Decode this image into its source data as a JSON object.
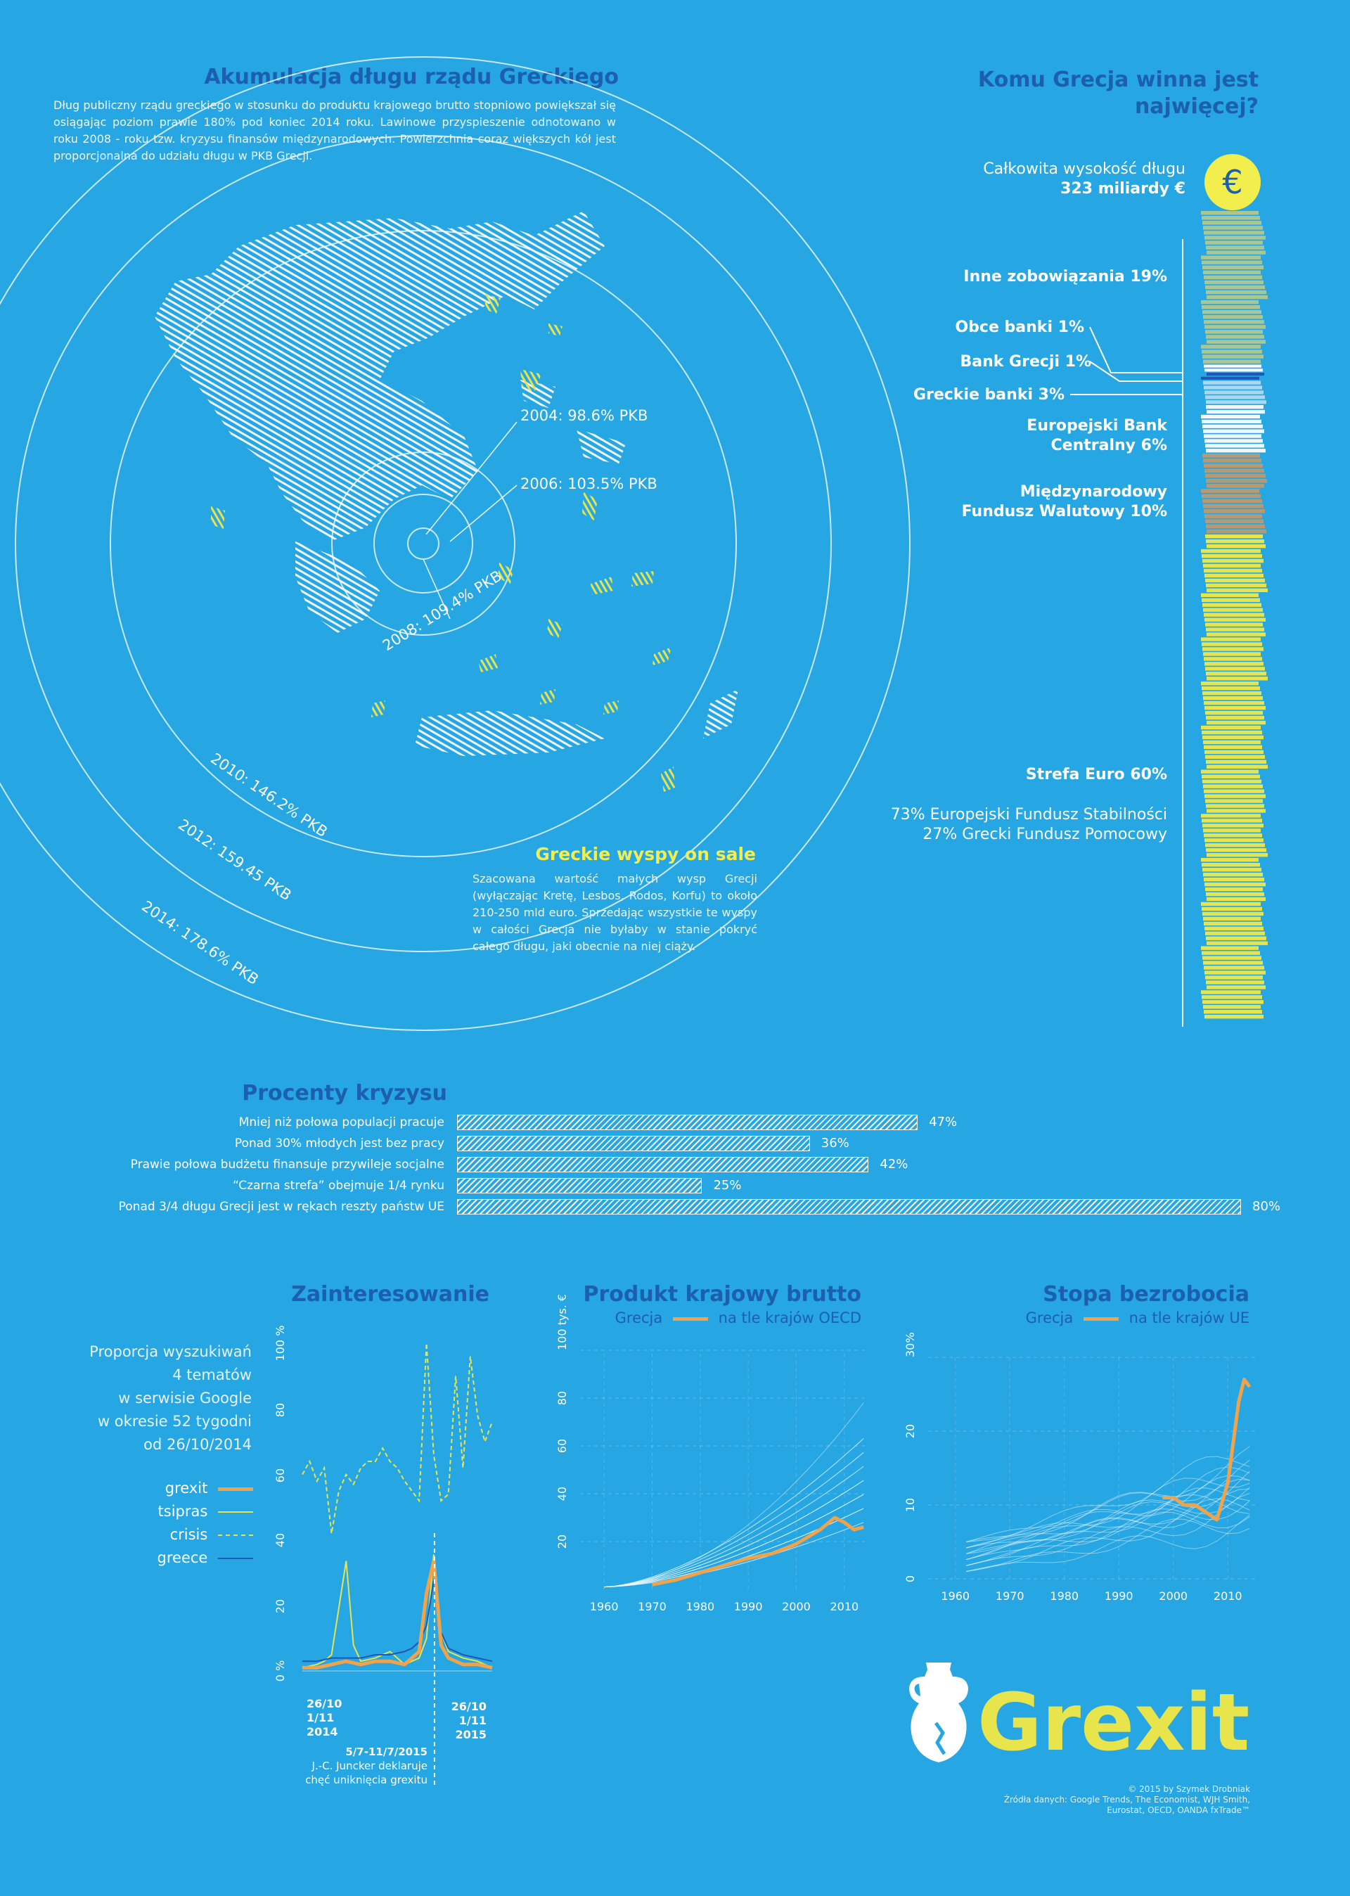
{
  "colors": {
    "background": "#26a6e2",
    "title": "#1c5fae",
    "yellow": "#e8e54c",
    "orange": "#f0a34a",
    "white": "#ffffff",
    "navy": "#1f57b6"
  },
  "accumulation": {
    "title": "Akumulacja długu rządu Greckiego",
    "text": "Dług publiczny rządu greckiego w stosunku do produktu krajowego brutto stopniowo powiększał się osiągając poziom prawie 180% pod koniec 2014 roku. Lawinowe przyspieszenie odnotowano w roku 2008 - roku tzw. kryzysu finansów międzynarodowych. Powierzchnia coraz większych kół jest proporcjonalna do udziału długu w PKB Grecji.",
    "rings": [
      {
        "label": "2004: 98.6% PKB",
        "value": 98.6
      },
      {
        "label": "2006: 103.5% PKB",
        "value": 103.5
      },
      {
        "label": "2008: 109.4% PKB",
        "value": 109.4
      },
      {
        "label": "2010: 146.2% PKB",
        "value": 146.2
      },
      {
        "label": "2012: 159.45 PKB",
        "value": 159.45
      },
      {
        "label": "2014: 178.6% PKB",
        "value": 178.6
      }
    ]
  },
  "islands": {
    "title": "Greckie wyspy on sale",
    "text": "Szacowana wartość małych wysp Grecji (wyłączając Kretę, Lesbos, Rodos, Korfu) to około 210-250 mld euro. Sprzedając wszystkie te wyspy w całości Grecja nie byłaby w stanie pokryć całego długu, jaki obecnie na niej ciąży."
  },
  "creditors": {
    "title_line1": "Komu Grecja winna jest",
    "title_line2": "najwięcej?",
    "total_label": "Całkowita wysokość długu",
    "total_value": "323 miliardy €",
    "currency_icon": "€",
    "segments": [
      {
        "label": "Inne zobowiązania 19%",
        "share": 19,
        "color": "#a9c694"
      },
      {
        "label": "Obce banki 1%",
        "share": 1,
        "color": "#ffffff"
      },
      {
        "label": "Bank Grecji 1%",
        "share": 1,
        "color": "#1f57b6"
      },
      {
        "label": "Greckie banki 3%",
        "share": 3,
        "color": "#a8d8f3"
      },
      {
        "label": "Europejski Bank Centralny 6%",
        "share": 6,
        "color": "#f1f7fb"
      },
      {
        "label": "Międzynarodowy Fundusz Walutowy 10%",
        "share": 10,
        "color": "#b69a74"
      },
      {
        "label": "Strefa Euro 60%",
        "share": 60,
        "color": "#e8e54c"
      }
    ],
    "inne_line": "Inne zobowiązania 19%",
    "obce_line": "Obce banki 1%",
    "bankgr_line": "Bank Grecji 1%",
    "greckie_line": "Greckie banki 3%",
    "ebc_line1": "Europejski Bank",
    "ebc_line2": "Centralny 6%",
    "mfw_line1": "Międzynarodowy",
    "mfw_line2": "Fundusz Walutowy 10%",
    "euro_line": "Strefa Euro 60%",
    "euro_note1": "73% Europejski Fundusz Stabilności",
    "euro_note2": "27% Grecki Fundusz Pomocowy"
  },
  "crisis": {
    "title": "Procenty kryzysu",
    "rows": [
      {
        "label": "Mniej niż połowa populacji pracuje",
        "value": 47,
        "text": "47%"
      },
      {
        "label": "Ponad 30% młodych jest bez pracy",
        "value": 36,
        "text": "36%"
      },
      {
        "label": "Prawie połowa budżetu finansuje przywileje socjalne",
        "value": 42,
        "text": "42%"
      },
      {
        "label": "“Czarna strefa” obejmuje 1/4 rynku",
        "value": 25,
        "text": "25%"
      },
      {
        "label": "Ponad 3/4 długu Grecji jest w rękach reszty państw UE",
        "value": 80,
        "text": "80%"
      }
    ]
  },
  "interest": {
    "title": "Zainteresowanie",
    "desc1": "Proporcja wyszukiwań",
    "desc2": "4 tematów",
    "desc3": "w serwisie Google",
    "desc4": "w okresie 52 tygodni",
    "desc5": "od 26/10/2014",
    "legend": [
      "grexit",
      "tsipras",
      "crisis",
      "greece"
    ],
    "yticks": [
      "0 %",
      "20",
      "40",
      "60",
      "80",
      "100 %"
    ],
    "x_start": [
      "26/10",
      "1/11",
      "2014"
    ],
    "x_end": [
      "26/10",
      "1/11",
      "2015"
    ],
    "note1": "5/7-11/7/2015",
    "note2": "J.-C. Juncker deklaruje",
    "note3": "chęć uniknięcia grexitu"
  },
  "gdp": {
    "title": "Produkt krajowy brutto",
    "legend_left": "Grecja",
    "legend_right": "na tle krajów OECD",
    "yticks": [
      "20",
      "40",
      "60",
      "80",
      "100 tys. €"
    ],
    "xticks": [
      "1960",
      "1970",
      "1980",
      "1990",
      "2000",
      "2010"
    ]
  },
  "unemployment": {
    "title": "Stopa bezrobocia",
    "legend_left": "Grecja",
    "legend_right": "na tle krajów UE",
    "yticks": [
      "0",
      "10",
      "20",
      "30%"
    ],
    "xticks": [
      "1960",
      "1970",
      "1980",
      "1990",
      "2000",
      "2010"
    ]
  },
  "chart_data": [
    {
      "type": "bar",
      "title": "Procenty kryzysu",
      "categories": [
        "Mniej niż połowa populacji pracuje",
        "Ponad 30% młodych jest bez pracy",
        "Prawie połowa budżetu finansuje przywileje socjalne",
        "“Czarna strefa” obejmuje 1/4 rynku",
        "Ponad 3/4 długu Grecji jest w rękach reszty państw UE"
      ],
      "values": [
        47,
        36,
        42,
        25,
        80
      ],
      "xlim": [
        0,
        100
      ]
    },
    {
      "type": "bar",
      "title": "Komu Grecja winna jest najwięcej?",
      "categories": [
        "Inne zobowiązania",
        "Obce banki",
        "Bank Grecji",
        "Greckie banki",
        "Europejski Bank Centralny",
        "Międzynarodowy Fundusz Walutowy",
        "Strefa Euro"
      ],
      "values": [
        19,
        1,
        1,
        3,
        6,
        10,
        60
      ]
    },
    {
      "type": "line",
      "title": "Zainteresowanie",
      "ylim": [
        0,
        100
      ],
      "series": [
        {
          "name": "crisis",
          "x": [
            0,
            2,
            4,
            6,
            8,
            10,
            12,
            14,
            16,
            18,
            20,
            22,
            24,
            26,
            28,
            30,
            32,
            34,
            36,
            38,
            40,
            42,
            44,
            46,
            48,
            50,
            52
          ],
          "y": [
            60,
            64,
            58,
            62,
            42,
            55,
            60,
            57,
            62,
            64,
            64,
            68,
            64,
            62,
            58,
            55,
            52,
            100,
            66,
            52,
            54,
            90,
            62,
            96,
            78,
            70,
            76
          ]
        },
        {
          "name": "tsipras",
          "x": [
            0,
            4,
            6,
            8,
            12,
            14,
            16,
            20,
            24,
            28,
            30,
            32,
            34,
            36,
            38,
            40,
            44,
            48,
            52
          ],
          "y": [
            1,
            2,
            3,
            5,
            34,
            8,
            3,
            4,
            6,
            2,
            3,
            4,
            10,
            36,
            12,
            6,
            4,
            3,
            1
          ]
        },
        {
          "name": "greece",
          "x": [
            0,
            4,
            8,
            12,
            16,
            20,
            24,
            28,
            30,
            32,
            34,
            36,
            38,
            40,
            44,
            48,
            52
          ],
          "y": [
            3,
            3,
            4,
            4,
            4,
            5,
            5,
            6,
            7,
            9,
            14,
            28,
            12,
            7,
            5,
            4,
            3
          ]
        },
        {
          "name": "grexit",
          "x": [
            0,
            4,
            8,
            12,
            16,
            20,
            24,
            28,
            30,
            32,
            34,
            36,
            38,
            40,
            44,
            48,
            52
          ],
          "y": [
            1,
            1,
            2,
            3,
            2,
            3,
            3,
            2,
            4,
            6,
            24,
            34,
            8,
            4,
            2,
            2,
            1
          ]
        }
      ]
    },
    {
      "type": "line",
      "title": "Produkt krajowy brutto",
      "xlim": [
        1955,
        2015
      ],
      "ylim": [
        0,
        100
      ],
      "series": [
        {
          "name": "Grecja",
          "x": [
            1970,
            1975,
            1980,
            1985,
            1990,
            1995,
            2000,
            2005,
            2008,
            2010,
            2012,
            2014
          ],
          "y": [
            2,
            4,
            7,
            10,
            13,
            15,
            19,
            25,
            30,
            28,
            25,
            26
          ]
        }
      ]
    },
    {
      "type": "line",
      "title": "Stopa bezrobocia",
      "xlim": [
        1955,
        2015
      ],
      "ylim": [
        0,
        30
      ],
      "series": [
        {
          "name": "Grecja",
          "x": [
            1998,
            2000,
            2002,
            2004,
            2006,
            2008,
            2010,
            2012,
            2013,
            2014
          ],
          "y": [
            11,
            11,
            10,
            10,
            9,
            8,
            13,
            24,
            27,
            26
          ]
        }
      ]
    }
  ],
  "footer": {
    "brand": "Grexit",
    "credit": "© 2015 by Szymek Drobniak",
    "src1": "Źródła danych: Google Trends, The Economist, WJH Smith,",
    "src2": "Eurostat, OECD, OANDA fxTrade™"
  }
}
